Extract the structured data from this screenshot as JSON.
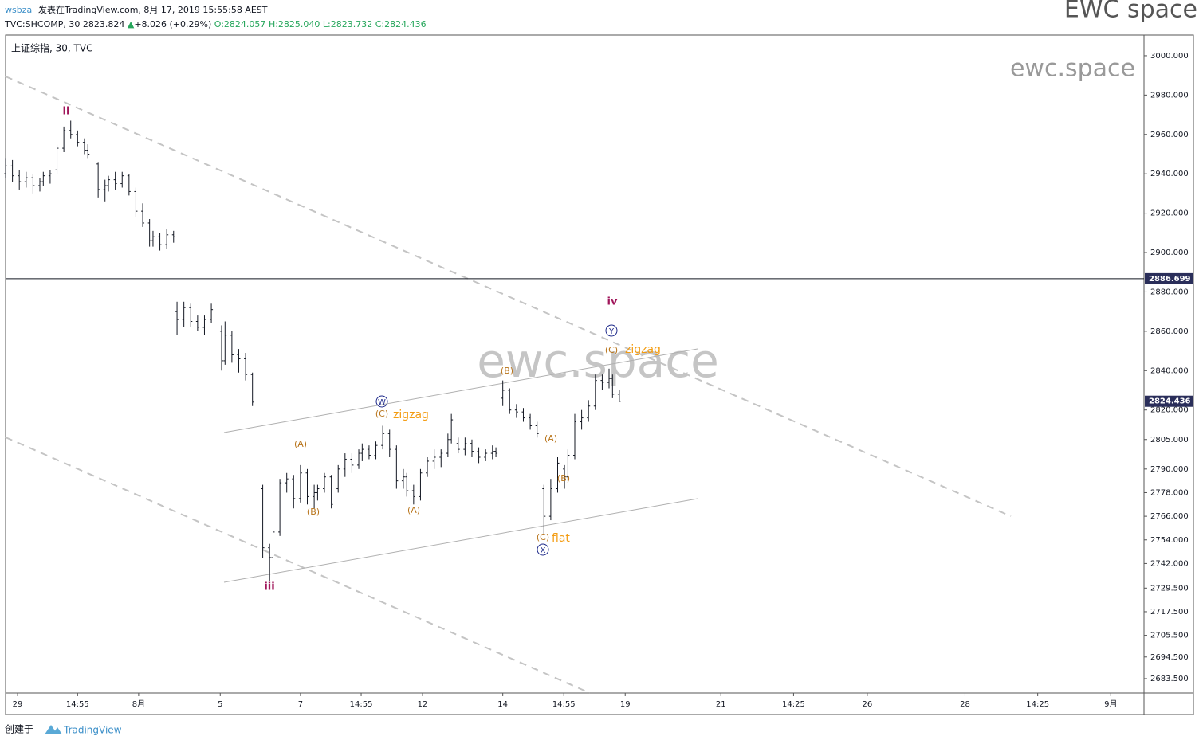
{
  "header": {
    "user": "wsbza",
    "published": "发表在TradingView.com, 8月 17, 2019 15:55:58 AEST",
    "brand": "EWC space",
    "symbol": "TVC:SHCOMP, 30",
    "price": "2823.824",
    "arrow": "▲",
    "change": "+8.026 (+0.29%)",
    "ohlc": [
      "O:2824.057",
      "H:2825.040",
      "L:2823.732",
      "C:2824.436"
    ],
    "pane_title": "上证综指, 30, TVC"
  },
  "footer": {
    "created": "创建于",
    "logo": "TradingView"
  },
  "chart_data": {
    "type": "ohlc",
    "watermark": "ewc.space",
    "color": "#131722",
    "xlim": [
      0,
      332
    ],
    "ylim": [
      2676.2,
      3010.5
    ],
    "xticks": [
      {
        "value": 3.5,
        "label": "29"
      },
      {
        "value": 21,
        "label": "14:55"
      },
      {
        "value": 38.8,
        "label": "8月"
      },
      {
        "value": 62.6,
        "label": "5"
      },
      {
        "value": 86,
        "label": "7"
      },
      {
        "value": 103.7,
        "label": "14:55"
      },
      {
        "value": 121.6,
        "label": "12"
      },
      {
        "value": 145,
        "label": "14"
      },
      {
        "value": 162.8,
        "label": "14:55"
      },
      {
        "value": 180.7,
        "label": "19"
      },
      {
        "value": 208.6,
        "label": "21"
      },
      {
        "value": 229.8,
        "label": "14:25"
      },
      {
        "value": 251.3,
        "label": "26"
      },
      {
        "value": 279.8,
        "label": "28"
      },
      {
        "value": 301,
        "label": "14:25"
      },
      {
        "value": 322.3,
        "label": "9月"
      }
    ],
    "yticks": [
      {
        "value": 2683.5,
        "label": "2683.500"
      },
      {
        "value": 2694.5,
        "label": "2694.500"
      },
      {
        "value": 2705.5,
        "label": "2705.500"
      },
      {
        "value": 2717.5,
        "label": "2717.500"
      },
      {
        "value": 2729.5,
        "label": "2729.500"
      },
      {
        "value": 2742,
        "label": "2742.000"
      },
      {
        "value": 2754,
        "label": "2754.000"
      },
      {
        "value": 2766,
        "label": "2766.000"
      },
      {
        "value": 2778,
        "label": "2778.000"
      },
      {
        "value": 2790,
        "label": "2790.000"
      },
      {
        "value": 2805,
        "label": "2805.000"
      },
      {
        "value": 2820,
        "label": "2820.000"
      },
      {
        "value": 2840,
        "label": "2840.000"
      },
      {
        "value": 2860,
        "label": "2860.000"
      },
      {
        "value": 2880,
        "label": "2880.000"
      },
      {
        "value": 2900,
        "label": "2900.000"
      },
      {
        "value": 2920,
        "label": "2920.000"
      },
      {
        "value": 2940,
        "label": "2940.000"
      },
      {
        "value": 2960,
        "label": "2960.000"
      },
      {
        "value": 2980,
        "label": "2980.000"
      },
      {
        "value": 3000,
        "label": "3000.000"
      }
    ],
    "hline": 2886.699,
    "last_price": 2824.436,
    "annotations": [
      "ii",
      "iii",
      "iv",
      "W",
      "X",
      "Y",
      "(C)",
      "zigzag",
      "(A)",
      "(B)",
      "(A)",
      "(B)",
      "(A)",
      "(B)",
      "(C)",
      "flat",
      "(C)",
      "zigzag"
    ],
    "x": [
      0,
      2,
      4,
      6,
      8,
      10,
      11,
      13,
      15,
      17,
      19,
      21,
      23,
      24,
      27,
      29,
      30,
      32,
      34,
      36,
      38,
      40,
      42,
      43,
      45,
      47,
      49,
      50,
      52,
      54,
      56,
      58,
      60,
      63,
      64,
      66,
      68,
      70,
      72,
      75,
      77,
      78,
      80,
      82,
      84,
      86,
      88,
      90,
      91,
      93,
      95,
      97,
      99,
      101,
      103,
      104,
      106,
      108,
      110,
      112,
      114,
      116,
      117,
      119,
      121,
      123,
      125,
      127,
      129,
      130,
      132,
      134,
      136,
      138,
      140,
      142,
      143,
      145,
      147,
      149,
      151,
      153,
      155,
      157,
      159,
      161,
      163,
      164,
      166,
      168,
      170,
      172,
      174,
      176,
      177,
      179
    ],
    "open": [
      2940,
      2944,
      2939,
      2936,
      2938,
      2934,
      2936,
      2939,
      2942,
      2953,
      2962,
      2960,
      2956,
      2952,
      2945,
      2932,
      2934,
      2937,
      2935,
      2939,
      2931,
      2921,
      2915,
      2906,
      2908,
      2904,
      2909,
      2870,
      2866,
      2872,
      2865,
      2862,
      2866,
      2860,
      2845,
      2858,
      2848,
      2846,
      2838,
      2780,
      2750,
      2745,
      2758,
      2783,
      2785,
      2775,
      2788,
      2776,
      2778,
      2780,
      2786,
      2780,
      2790,
      2795,
      2792,
      2798,
      2800,
      2797,
      2802,
      2808,
      2800,
      2784,
      2786,
      2779,
      2776,
      2788,
      2794,
      2796,
      2798,
      2805,
      2803,
      2800,
      2803,
      2799,
      2796,
      2798,
      2799,
      2826,
      2830,
      2820,
      2819,
      2816,
      2812,
      2780,
      2766,
      2780,
      2790,
      2786,
      2797,
      2814,
      2816,
      2822,
      2835,
      2834,
      2836,
      2828
    ],
    "high": [
      2948,
      2947,
      2942,
      2941,
      2940,
      2938,
      2941,
      2942,
      2955,
      2964,
      2967,
      2962,
      2958,
      2955,
      2946,
      2937,
      2939,
      2941,
      2941,
      2940,
      2933,
      2925,
      2917,
      2911,
      2910,
      2912,
      2911,
      2875,
      2875,
      2874,
      2868,
      2868,
      2874,
      2863,
      2865,
      2860,
      2851,
      2849,
      2839,
      2782,
      2752,
      2760,
      2785,
      2788,
      2787,
      2792,
      2790,
      2782,
      2782,
      2788,
      2787,
      2792,
      2798,
      2798,
      2800,
      2803,
      2802,
      2804,
      2812,
      2810,
      2802,
      2790,
      2788,
      2782,
      2790,
      2796,
      2800,
      2800,
      2808,
      2818,
      2806,
      2806,
      2805,
      2801,
      2800,
      2802,
      2801,
      2835,
      2831,
      2823,
      2821,
      2818,
      2814,
      2782,
      2785,
      2796,
      2792,
      2800,
      2818,
      2820,
      2825,
      2838,
      2838,
      2841,
      2838,
      2830
    ],
    "low": [
      2938,
      2936,
      2932,
      2933,
      2930,
      2931,
      2934,
      2935,
      2940,
      2951,
      2958,
      2954,
      2950,
      2948,
      2928,
      2926,
      2931,
      2932,
      2933,
      2929,
      2918,
      2913,
      2903,
      2903,
      2901,
      2902,
      2905,
      2858,
      2862,
      2862,
      2860,
      2858,
      2864,
      2840,
      2843,
      2844,
      2839,
      2835,
      2822,
      2745,
      2733,
      2743,
      2756,
      2778,
      2770,
      2773,
      2772,
      2770,
      2774,
      2778,
      2770,
      2778,
      2786,
      2788,
      2790,
      2794,
      2795,
      2795,
      2800,
      2796,
      2780,
      2780,
      2776,
      2772,
      2774,
      2786,
      2790,
      2791,
      2796,
      2803,
      2798,
      2797,
      2796,
      2793,
      2794,
      2795,
      2796,
      2822,
      2818,
      2816,
      2814,
      2810,
      2806,
      2757,
      2764,
      2778,
      2780,
      2784,
      2795,
      2810,
      2814,
      2820,
      2830,
      2831,
      2826,
      2824
    ],
    "close": [
      2944,
      2939,
      2936,
      2938,
      2934,
      2936,
      2939,
      2940,
      2953,
      2962,
      2960,
      2956,
      2952,
      2950,
      2932,
      2934,
      2937,
      2935,
      2939,
      2931,
      2921,
      2915,
      2906,
      2908,
      2904,
      2909,
      2908,
      2866,
      2872,
      2865,
      2862,
      2866,
      2871,
      2845,
      2858,
      2848,
      2846,
      2838,
      2824,
      2750,
      2745,
      2758,
      2783,
      2785,
      2775,
      2788,
      2776,
      2778,
      2780,
      2786,
      2772,
      2790,
      2795,
      2792,
      2798,
      2800,
      2797,
      2802,
      2808,
      2800,
      2784,
      2786,
      2779,
      2776,
      2788,
      2794,
      2796,
      2798,
      2805,
      2815,
      2800,
      2803,
      2799,
      2796,
      2798,
      2799,
      2798,
      2830,
      2820,
      2819,
      2816,
      2812,
      2808,
      2766,
      2780,
      2793,
      2786,
      2797,
      2814,
      2816,
      2822,
      2835,
      2834,
      2836,
      2828,
      2824.436
    ]
  }
}
